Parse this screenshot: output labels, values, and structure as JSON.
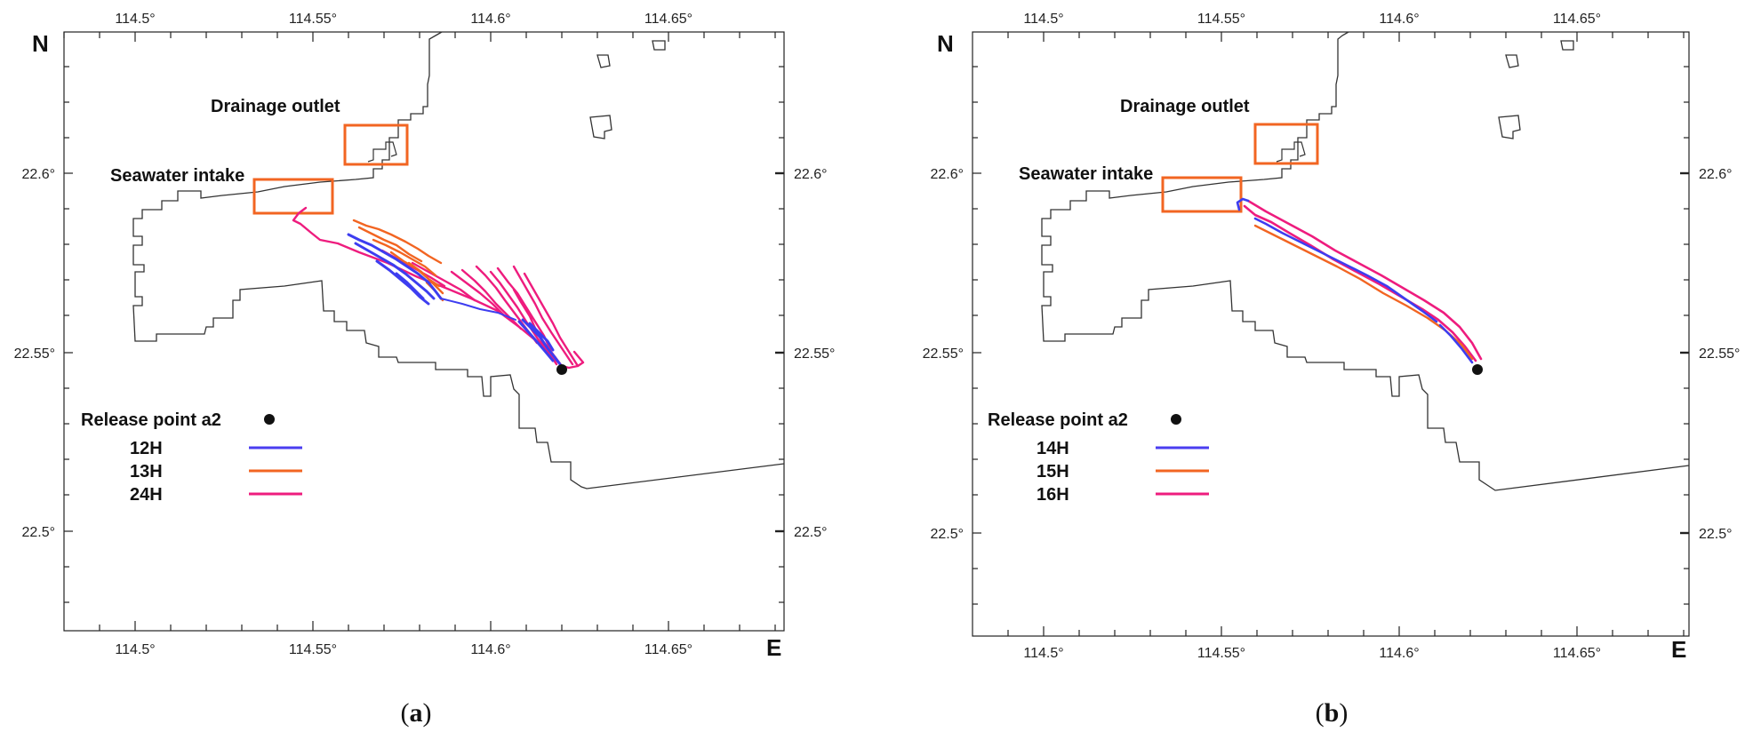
{
  "panels": [
    {
      "id": "a",
      "caption_letter": "a",
      "north_label": "N",
      "east_label": "E",
      "lon_ticks": [
        "114.5°",
        "114.55°",
        "114.6°",
        "114.65°"
      ],
      "lat_ticks": [
        "22.6°",
        "22.55°",
        "22.5°"
      ],
      "annotations": {
        "drainage_outlet": "Drainage outlet",
        "seawater_intake": "Seawater intake"
      },
      "legend": {
        "release_point": "Release point a2",
        "entries": [
          {
            "label": "12H",
            "color": "#4a3df0"
          },
          {
            "label": "13H",
            "color": "#f26522"
          },
          {
            "label": "24H",
            "color": "#ee1c7e"
          }
        ]
      }
    },
    {
      "id": "b",
      "caption_letter": "b",
      "north_label": "N",
      "east_label": "E",
      "lon_ticks": [
        "114.5°",
        "114.55°",
        "114.6°",
        "114.65°"
      ],
      "lat_ticks": [
        "22.6°",
        "22.55°",
        "22.5°"
      ],
      "annotations": {
        "drainage_outlet": "Drainage outlet",
        "seawater_intake": "Seawater intake"
      },
      "legend": {
        "release_point": "Release point a2",
        "entries": [
          {
            "label": "14H",
            "color": "#4a3df0"
          },
          {
            "label": "15H",
            "color": "#f26522"
          },
          {
            "label": "16H",
            "color": "#ee1c7e"
          }
        ]
      }
    }
  ]
}
